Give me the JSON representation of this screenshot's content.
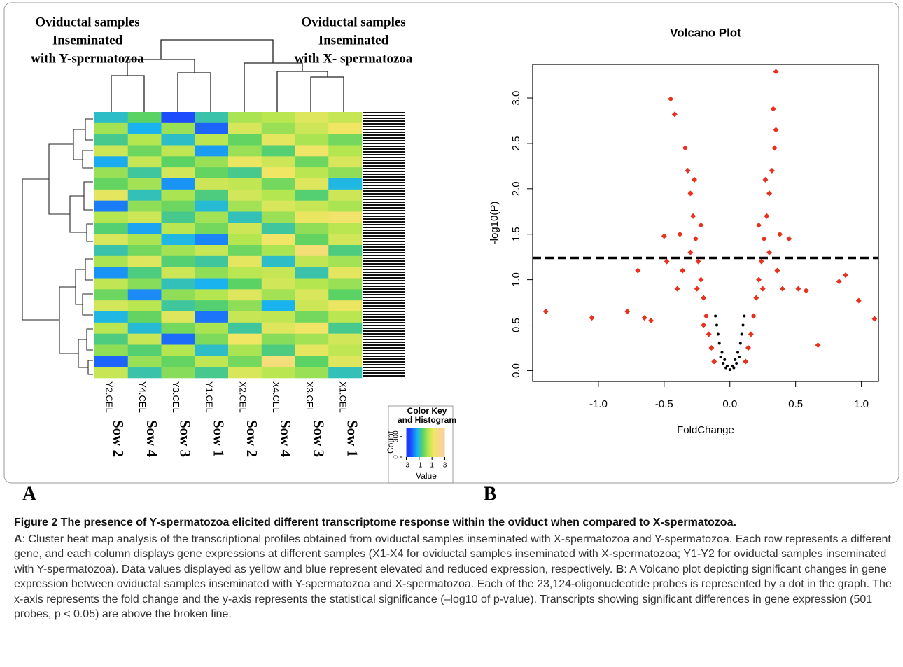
{
  "chart_data": [
    {
      "type": "heatmap",
      "group_labels": [
        [
          "Oviductal samples",
          "Inseminated",
          "with Y-spermatozoa"
        ],
        [
          "Oviductal samples",
          "Inseminated",
          "with X- spermatozoa"
        ]
      ],
      "columns": [
        {
          "file": "Y2.CEL",
          "sow": "Sow 2"
        },
        {
          "file": "Y4.CEL",
          "sow": "Sow 4"
        },
        {
          "file": "Y3.CEL",
          "sow": "Sow 3"
        },
        {
          "file": "Y1.CEL",
          "sow": "Sow 1"
        },
        {
          "file": "X2.CEL",
          "sow": "Sow 2"
        },
        {
          "file": "X4.CEL",
          "sow": "Sow 4"
        },
        {
          "file": "X3.CEL",
          "sow": "Sow 3"
        },
        {
          "file": "X1.CEL",
          "sow": "Sow 1"
        }
      ],
      "values": [
        [
          -1.2,
          -0.5,
          -2.8,
          -1.0,
          0.4,
          0.6,
          1.2,
          0.8
        ],
        [
          0.3,
          -1.5,
          0.2,
          -2.5,
          1.1,
          0.2,
          0.9,
          1.5
        ],
        [
          -0.8,
          0.5,
          -1.2,
          0.6,
          -0.4,
          1.3,
          0.4,
          -0.2
        ],
        [
          0.9,
          -0.3,
          0.7,
          -1.8,
          0.2,
          -0.6,
          1.6,
          0.5
        ],
        [
          -1.6,
          0.8,
          -0.5,
          0.2,
          1.4,
          0.9,
          -0.3,
          1.1
        ],
        [
          0.2,
          -0.9,
          1.0,
          -0.4,
          -0.8,
          1.5,
          0.6,
          0.1
        ],
        [
          -0.4,
          0.3,
          -1.9,
          0.9,
          0.7,
          -0.2,
          1.2,
          -1.4
        ],
        [
          1.3,
          -1.1,
          0.4,
          -0.7,
          1.0,
          0.5,
          -0.6,
          0.9
        ],
        [
          -2.2,
          0.1,
          -0.3,
          -1.3,
          0.3,
          1.1,
          0.8,
          0.4
        ],
        [
          0.5,
          0.9,
          -0.8,
          0.3,
          -1.1,
          0.2,
          1.4,
          1.7
        ],
        [
          -0.6,
          -1.7,
          0.6,
          -0.2,
          0.9,
          -0.9,
          0.1,
          0.6
        ],
        [
          1.1,
          0.4,
          -1.4,
          -2.1,
          0.5,
          1.6,
          -0.4,
          1.0
        ],
        [
          -1.0,
          -0.2,
          0.3,
          0.8,
          -0.3,
          0.4,
          2.0,
          -0.7
        ],
        [
          0.4,
          1.2,
          -0.6,
          -0.9,
          1.3,
          -1.2,
          0.7,
          0.3
        ],
        [
          -1.9,
          -0.7,
          0.9,
          0.1,
          0.6,
          0.8,
          -1.0,
          1.3
        ],
        [
          0.7,
          0.0,
          -1.1,
          -1.5,
          -0.5,
          1.0,
          0.5,
          0.2
        ],
        [
          -0.3,
          -2.0,
          0.1,
          0.5,
          1.2,
          0.3,
          1.1,
          -0.5
        ],
        [
          1.0,
          0.6,
          -0.9,
          -0.6,
          0.1,
          -1.5,
          0.9,
          1.4
        ],
        [
          -1.4,
          -0.4,
          1.2,
          -2.3,
          0.8,
          0.7,
          -0.2,
          0.6
        ],
        [
          0.6,
          -1.3,
          -0.2,
          0.4,
          -0.9,
          1.2,
          1.6,
          -0.8
        ],
        [
          -0.7,
          0.8,
          -2.4,
          -0.1,
          1.5,
          0.0,
          0.3,
          1.0
        ],
        [
          0.1,
          -0.6,
          0.5,
          -1.2,
          0.4,
          -0.7,
          1.3,
          0.7
        ],
        [
          -2.5,
          0.2,
          -0.4,
          0.7,
          -0.2,
          2.1,
          -0.5,
          1.2
        ],
        [
          0.8,
          -1.0,
          0.0,
          -0.8,
          1.1,
          0.6,
          0.2,
          -1.1
        ]
      ],
      "colormap": [
        [
          -3,
          "#1e3cff"
        ],
        [
          -1.5,
          "#19b4f0"
        ],
        [
          -0.5,
          "#5ad264"
        ],
        [
          0.5,
          "#b4e650"
        ],
        [
          1.5,
          "#f0e664"
        ],
        [
          3,
          "#fad29a"
        ]
      ],
      "color_key": {
        "title": [
          "Color Key",
          "and Histogram"
        ],
        "x_label": "Value",
        "y_label": "Count",
        "xlim": [
          -3.6,
          3.6
        ],
        "xticks": [
          -3,
          -1,
          1,
          3
        ],
        "ylim": [
          0,
          420
        ],
        "yticks": [
          0,
          300
        ]
      }
    },
    {
      "type": "scatter",
      "title": "Volcano Plot",
      "x_label": "FoldChange",
      "y_label": "-log10(P)",
      "xlim": [
        -1.5,
        1.13
      ],
      "ylim": [
        -0.12,
        3.37
      ],
      "xticks": [
        {
          "value": -1,
          "label": "-1.0"
        },
        -0.5,
        {
          "value": 0,
          "label": "0.0"
        },
        0.5,
        {
          "value": 1,
          "label": "1.0"
        }
      ],
      "yticks": [
        {
          "value": 0,
          "label": "0.0"
        },
        0.5,
        {
          "value": 1,
          "label": "1.0"
        },
        1.5,
        {
          "value": 2,
          "label": "2.0"
        },
        2.5,
        {
          "value": 3,
          "label": "3.0"
        }
      ],
      "threshold": 1.24,
      "series": [
        {
          "color": "#e8321e",
          "x": [
            -1.4,
            -1.05,
            -0.78,
            -0.7,
            -0.65,
            -0.6,
            -0.45,
            -0.42,
            0.35,
            0.33,
            0.58,
            0.67,
            0.83,
            0.88,
            0.98,
            1.1,
            0.52,
            0.45,
            -0.5,
            -0.48,
            -0.12,
            -0.14,
            -0.16,
            -0.18,
            -0.2,
            -0.22,
            -0.24,
            -0.26,
            -0.28,
            -0.3,
            -0.32,
            -0.34,
            -0.3,
            -0.25,
            -0.36,
            -0.4,
            -0.22,
            -0.27,
            -0.2,
            -0.38,
            0.12,
            0.14,
            0.16,
            0.18,
            0.2,
            0.22,
            0.24,
            0.26,
            0.28,
            0.3,
            0.32,
            0.34,
            0.35,
            0.3,
            0.25,
            0.36,
            0.4,
            0.22,
            0.27,
            0.38
          ],
          "y": [
            0.65,
            0.58,
            0.65,
            1.1,
            0.58,
            0.55,
            2.99,
            2.82,
            3.29,
            2.88,
            0.88,
            0.28,
            0.98,
            1.05,
            0.77,
            0.57,
            0.9,
            1.45,
            1.48,
            1.2,
            0.1,
            0.25,
            0.4,
            0.6,
            0.8,
            1.0,
            1.2,
            1.45,
            1.7,
            1.95,
            2.2,
            2.45,
            1.3,
            0.9,
            1.1,
            0.9,
            1.6,
            2.1,
            0.5,
            1.5,
            0.1,
            0.25,
            0.4,
            0.6,
            0.8,
            1.0,
            1.2,
            1.45,
            1.7,
            1.95,
            2.2,
            2.45,
            2.65,
            1.3,
            0.9,
            1.1,
            0.9,
            1.6,
            2.1,
            1.5
          ]
        },
        {
          "color": "#000000",
          "x": [
            0,
            -0.02,
            0.02,
            -0.04,
            0.04,
            -0.06,
            0.06,
            -0.08,
            0.08,
            -0.09,
            0.09,
            -0.1,
            0.1,
            -0.11,
            0.11,
            -0.05,
            0.05,
            -0.03,
            0.03,
            -0.07,
            0.07
          ],
          "y": [
            0.01,
            0.05,
            0.05,
            0.12,
            0.12,
            0.2,
            0.2,
            0.3,
            0.3,
            0.4,
            0.4,
            0.5,
            0.5,
            0.6,
            0.6,
            0.08,
            0.08,
            0.03,
            0.03,
            0.15,
            0.15
          ]
        }
      ]
    }
  ],
  "panel_labels": [
    "A",
    "B"
  ],
  "caption": {
    "title": "Figure 2 The presence of Y-spermatozoa elicited different transcriptome response within the oviduct when compared to X-spermatozoa.",
    "a_label": "A",
    "a_text": ": Cluster heat map analysis of the transcriptional profiles obtained from oviductal samples inseminated with X-spermatozoa and Y-spermatozoa. Each row represents a different gene, and each column displays gene expressions at different samples (X1-X4 for oviductal samples inseminated with X-spermatozoa; Y1-Y2 for oviductal samples inseminated with Y-spermatozoa). Data values displayed as yellow and blue represent elevated and reduced expression, respectively.",
    "b_label": "B",
    "b_text": ": A Volcano plot depicting significant changes in gene expression between oviductal samples inseminated with Y-spermatozoa and X-spermatozoa. Each of the 23,124-oligonucleotide probes is represented by a dot in the graph. The x-axis represents the fold change and the y-axis represents the statistical significance (–log10 of p-value). Transcripts showing significant differences in gene expression (501 probes, p < 0.05) are above the broken line."
  }
}
